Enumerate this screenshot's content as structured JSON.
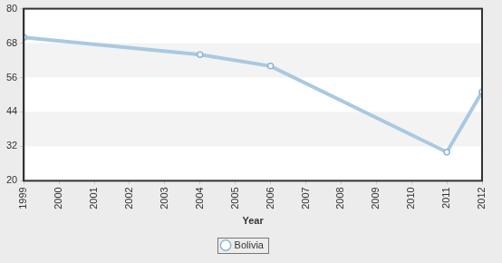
{
  "chart_data": {
    "type": "line",
    "x_label": "Year",
    "x": [
      1999,
      2004,
      2006,
      2011,
      2012
    ],
    "series": [
      {
        "name": "Bolivia",
        "color": "#a9c9e2",
        "values": [
          70,
          64,
          60,
          30,
          51
        ],
        "marker": "circle"
      }
    ],
    "xlim": [
      1999,
      2012
    ],
    "xticks": [
      1999,
      2000,
      2001,
      2002,
      2003,
      2004,
      2005,
      2006,
      2007,
      2008,
      2009,
      2010,
      2011,
      2012
    ],
    "ylim": [
      20,
      80
    ],
    "yticks": [
      20,
      32,
      44,
      56,
      68,
      80
    ],
    "grid": true,
    "legend": "bottom"
  }
}
